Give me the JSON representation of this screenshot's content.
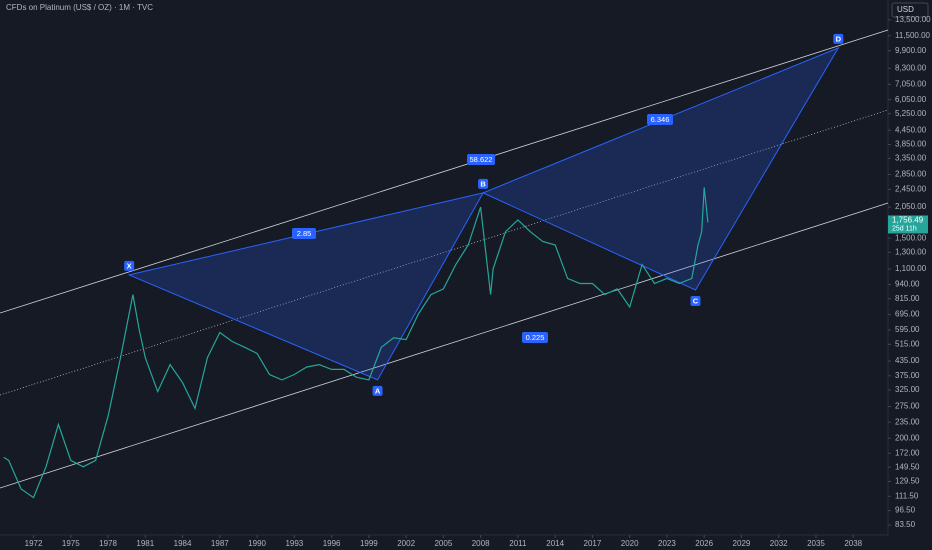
{
  "chart_data": {
    "type": "line",
    "title": "CFDs on Platinum (US$ / OZ) · 1M · TVC",
    "currency": "USD",
    "log_scale": true,
    "grid": false,
    "x": [
      1969.6,
      1970,
      1971,
      1972,
      1973,
      1974,
      1975,
      1976,
      1977,
      1978,
      1979,
      1980,
      1980.5,
      1981,
      1982,
      1983,
      1984,
      1985,
      1986,
      1987,
      1988,
      1989,
      1990,
      1991,
      1992,
      1993,
      1994,
      1995,
      1996,
      1997,
      1998,
      1999,
      2000,
      2001,
      2002,
      2003,
      2004,
      2005,
      2006,
      2007,
      2008,
      2008.8,
      2009,
      2010,
      2011,
      2012,
      2013,
      2014,
      2015,
      2016,
      2017,
      2018,
      2019,
      2020,
      2021,
      2022,
      2023,
      2024,
      2025,
      2025.5,
      2025.8,
      2026,
      2026.3
    ],
    "series": [
      {
        "name": "Platinum",
        "color": "#26a69a",
        "values": [
          165,
          160,
          120,
          110,
          150,
          230,
          160,
          150,
          160,
          250,
          450,
          850,
          600,
          450,
          320,
          420,
          350,
          270,
          450,
          580,
          530,
          500,
          470,
          380,
          360,
          380,
          410,
          420,
          400,
          400,
          370,
          360,
          500,
          550,
          540,
          700,
          850,
          900,
          1150,
          1400,
          2050,
          850,
          1100,
          1600,
          1800,
          1600,
          1450,
          1400,
          1000,
          950,
          950,
          850,
          900,
          750,
          1150,
          950,
          1000,
          950,
          1000,
          1400,
          1600,
          2500,
          1756.49
        ]
      }
    ],
    "price_label": {
      "value": 1756.49,
      "label": "1,756.49",
      "countdown": "25d 11h"
    },
    "xlim": [
      1969.3,
      2040.8
    ],
    "xticks": [
      1972,
      1975,
      1978,
      1981,
      1984,
      1987,
      1990,
      1993,
      1996,
      1999,
      2002,
      2005,
      2008,
      2011,
      2014,
      2017,
      2020,
      2023,
      2026,
      2029,
      2032,
      2035,
      2038
    ],
    "ylim": [
      75.5,
      16500
    ],
    "yticks": [
      {
        "value": 13500,
        "label": "13,500.00"
      },
      {
        "value": 11500,
        "label": "11,500.00"
      },
      {
        "value": 9900,
        "label": "9,900.00"
      },
      {
        "value": 8300,
        "label": "8,300.00"
      },
      {
        "value": 7050,
        "label": "7,050.00"
      },
      {
        "value": 6050,
        "label": "6,050.00"
      },
      {
        "value": 5250,
        "label": "5,250.00"
      },
      {
        "value": 4450,
        "label": "4,450.00"
      },
      {
        "value": 3850,
        "label": "3,850.00"
      },
      {
        "value": 3350,
        "label": "3,350.00"
      },
      {
        "value": 2850,
        "label": "2,850.00"
      },
      {
        "value": 2450,
        "label": "2,450.00"
      },
      {
        "value": 2050,
        "label": "2,050.00"
      },
      {
        "value": 1500,
        "label": "1,500.00"
      },
      {
        "value": 1300,
        "label": "1,300.00"
      },
      {
        "value": 1100,
        "label": "1,100.00"
      },
      {
        "value": 940,
        "label": "940.00"
      },
      {
        "value": 815,
        "label": "815.00"
      },
      {
        "value": 695,
        "label": "695.00"
      },
      {
        "value": 595,
        "label": "595.00"
      },
      {
        "value": 515,
        "label": "515.00"
      },
      {
        "value": 435,
        "label": "435.00"
      },
      {
        "value": 375,
        "label": "375.00"
      },
      {
        "value": 325,
        "label": "325.00"
      },
      {
        "value": 275,
        "label": "275.00"
      },
      {
        "value": 235,
        "label": "235.00"
      },
      {
        "value": 200,
        "label": "200.00"
      },
      {
        "value": 172,
        "label": "172.00"
      },
      {
        "value": 149.5,
        "label": "149.50"
      },
      {
        "value": 129.5,
        "label": "129.50"
      },
      {
        "value": 111.5,
        "label": "111.50"
      },
      {
        "value": 96.5,
        "label": "96.50"
      },
      {
        "value": 83.5,
        "label": "83.50"
      }
    ],
    "pattern": {
      "color": "#2962ff",
      "points": [
        {
          "label": "X",
          "x": 1979.7,
          "y": 1036
        },
        {
          "label": "A",
          "x": 1999.7,
          "y": 360
        },
        {
          "label": "B",
          "x": 2008.2,
          "y": 2366
        },
        {
          "label": "C",
          "x": 2025.3,
          "y": 890
        },
        {
          "label": "D",
          "x": 2036.8,
          "y": 10190
        }
      ],
      "ratios": [
        "2.85",
        "58.622",
        "6.346",
        "0.225"
      ]
    }
  }
}
